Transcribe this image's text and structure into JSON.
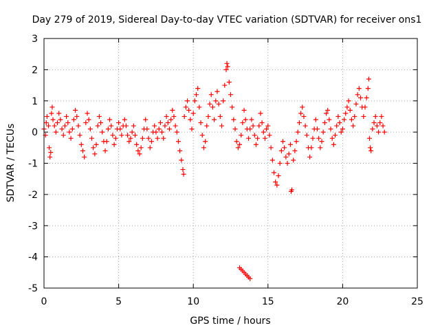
{
  "chart_data": {
    "type": "scatter",
    "title": "Day 279 of 2019, Sidereal Day-to-day VTEC variation (SDTVAR) for receiver ons1",
    "xlabel": "GPS time / hours",
    "ylabel": "SDTVAR / TECUs",
    "xlim": [
      0,
      25
    ],
    "ylim": [
      -5,
      3
    ],
    "xticks": [
      "0",
      "5",
      "10",
      "15",
      "20",
      "25"
    ],
    "yticks": [
      "-5",
      "-4",
      "-3",
      "-2",
      "-1",
      "0",
      "1",
      "2",
      "3"
    ],
    "grid": true,
    "marker": "plus",
    "marker_color": "#ff0000",
    "series": [
      {
        "name": "SDTVAR",
        "points": [
          [
            0.0,
            0.1
          ],
          [
            0.1,
            -0.1
          ],
          [
            0.15,
            0.3
          ],
          [
            0.2,
            0.5
          ],
          [
            0.3,
            0.2
          ],
          [
            0.35,
            -0.5
          ],
          [
            0.4,
            -0.8
          ],
          [
            0.45,
            -0.65
          ],
          [
            0.5,
            0.6
          ],
          [
            0.55,
            0.8
          ],
          [
            0.6,
            0.4
          ],
          [
            0.7,
            0.2
          ],
          [
            0.8,
            0.0
          ],
          [
            0.9,
            0.3
          ],
          [
            1.0,
            0.6
          ],
          [
            1.1,
            0.4
          ],
          [
            1.2,
            0.1
          ],
          [
            1.3,
            -0.1
          ],
          [
            1.4,
            0.2
          ],
          [
            1.5,
            0.5
          ],
          [
            1.6,
            0.3
          ],
          [
            1.7,
            0.0
          ],
          [
            1.8,
            -0.2
          ],
          [
            1.9,
            0.1
          ],
          [
            2.0,
            0.4
          ],
          [
            2.1,
            0.7
          ],
          [
            2.2,
            0.5
          ],
          [
            2.3,
            0.2
          ],
          [
            2.4,
            -0.1
          ],
          [
            2.5,
            -0.4
          ],
          [
            2.6,
            -0.6
          ],
          [
            2.7,
            -0.8
          ],
          [
            2.8,
            0.3
          ],
          [
            2.9,
            0.6
          ],
          [
            3.0,
            0.4
          ],
          [
            3.1,
            0.1
          ],
          [
            3.2,
            -0.2
          ],
          [
            3.3,
            -0.5
          ],
          [
            3.4,
            -0.7
          ],
          [
            3.5,
            -0.4
          ],
          [
            3.6,
            0.2
          ],
          [
            3.7,
            0.5
          ],
          [
            3.8,
            0.3
          ],
          [
            3.9,
            0.0
          ],
          [
            4.0,
            -0.3
          ],
          [
            4.1,
            -0.6
          ],
          [
            4.2,
            -0.3
          ],
          [
            4.3,
            0.1
          ],
          [
            4.4,
            0.4
          ],
          [
            4.5,
            0.2
          ],
          [
            4.6,
            -0.1
          ],
          [
            4.7,
            -0.4
          ],
          [
            4.8,
            -0.2
          ],
          [
            4.9,
            0.1
          ],
          [
            5.0,
            0.3
          ],
          [
            5.1,
            0.1
          ],
          [
            5.2,
            -0.1
          ],
          [
            5.3,
            0.2
          ],
          [
            5.4,
            0.4
          ],
          [
            5.5,
            0.2
          ],
          [
            5.6,
            -0.1
          ],
          [
            5.7,
            -0.3
          ],
          [
            5.8,
            -0.2
          ],
          [
            5.9,
            0.0
          ],
          [
            6.0,
            0.2
          ],
          [
            6.1,
            -0.1
          ],
          [
            6.2,
            -0.4
          ],
          [
            6.3,
            -0.6
          ],
          [
            6.4,
            -0.7
          ],
          [
            6.5,
            -0.5
          ],
          [
            6.6,
            -0.2
          ],
          [
            6.7,
            0.1
          ],
          [
            6.8,
            0.4
          ],
          [
            6.9,
            0.1
          ],
          [
            7.0,
            -0.2
          ],
          [
            7.1,
            -0.5
          ],
          [
            7.2,
            -0.3
          ],
          [
            7.3,
            0.0
          ],
          [
            7.4,
            0.2
          ],
          [
            7.5,
            0.0
          ],
          [
            7.6,
            -0.2
          ],
          [
            7.7,
            0.1
          ],
          [
            7.8,
            0.3
          ],
          [
            7.9,
            0.0
          ],
          [
            8.0,
            -0.2
          ],
          [
            8.1,
            0.2
          ],
          [
            8.2,
            0.5
          ],
          [
            8.3,
            0.3
          ],
          [
            8.4,
            0.1
          ],
          [
            8.5,
            0.4
          ],
          [
            8.6,
            0.7
          ],
          [
            8.7,
            0.5
          ],
          [
            8.8,
            0.2
          ],
          [
            8.9,
            0.0
          ],
          [
            9.0,
            -0.3
          ],
          [
            9.1,
            -0.6
          ],
          [
            9.2,
            -0.9
          ],
          [
            9.3,
            -1.2
          ],
          [
            9.35,
            -1.35
          ],
          [
            9.4,
            0.5
          ],
          [
            9.5,
            0.8
          ],
          [
            9.6,
            1.0
          ],
          [
            9.7,
            0.7
          ],
          [
            9.8,
            0.4
          ],
          [
            9.9,
            0.1
          ],
          [
            10.0,
            0.6
          ],
          [
            10.1,
            1.0
          ],
          [
            10.2,
            1.2
          ],
          [
            10.3,
            1.4
          ],
          [
            10.4,
            0.8
          ],
          [
            10.5,
            0.3
          ],
          [
            10.6,
            -0.1
          ],
          [
            10.7,
            -0.5
          ],
          [
            10.8,
            -0.3
          ],
          [
            10.9,
            0.2
          ],
          [
            11.0,
            0.5
          ],
          [
            11.1,
            0.9
          ],
          [
            11.2,
            1.2
          ],
          [
            11.3,
            0.8
          ],
          [
            11.4,
            0.4
          ],
          [
            11.5,
            1.0
          ],
          [
            11.6,
            1.3
          ],
          [
            11.7,
            0.9
          ],
          [
            11.8,
            0.5
          ],
          [
            11.9,
            0.2
          ],
          [
            12.0,
            1.0
          ],
          [
            12.1,
            1.5
          ],
          [
            12.2,
            2.0
          ],
          [
            12.25,
            2.2
          ],
          [
            12.3,
            2.1
          ],
          [
            12.4,
            1.6
          ],
          [
            12.5,
            1.2
          ],
          [
            12.6,
            0.8
          ],
          [
            12.7,
            0.4
          ],
          [
            12.8,
            0.1
          ],
          [
            12.9,
            -0.3
          ],
          [
            13.0,
            -0.5
          ],
          [
            13.1,
            -0.4
          ],
          [
            13.2,
            -0.1
          ],
          [
            13.3,
            0.3
          ],
          [
            13.4,
            0.7
          ],
          [
            13.5,
            0.4
          ],
          [
            13.6,
            0.1
          ],
          [
            13.7,
            -0.2
          ],
          [
            13.8,
            0.1
          ],
          [
            13.9,
            0.4
          ],
          [
            14.0,
            0.2
          ],
          [
            14.1,
            -0.1
          ],
          [
            14.2,
            -0.4
          ],
          [
            14.3,
            -0.2
          ],
          [
            14.4,
            0.2
          ],
          [
            14.5,
            0.6
          ],
          [
            14.6,
            0.3
          ],
          [
            14.7,
            0.0
          ],
          [
            14.8,
            -0.2
          ],
          [
            14.9,
            0.1
          ],
          [
            15.0,
            0.2
          ],
          [
            15.1,
            -0.1
          ],
          [
            15.2,
            -0.5
          ],
          [
            15.3,
            -0.9
          ],
          [
            15.4,
            -1.3
          ],
          [
            15.5,
            -1.6
          ],
          [
            15.6,
            -1.7
          ],
          [
            15.7,
            -1.4
          ],
          [
            15.8,
            -1.0
          ],
          [
            15.9,
            -0.6
          ],
          [
            16.0,
            -0.3
          ],
          [
            16.1,
            -0.5
          ],
          [
            16.2,
            -0.8
          ],
          [
            16.3,
            -1.0
          ],
          [
            16.4,
            -0.7
          ],
          [
            16.5,
            -0.4
          ],
          [
            16.55,
            -1.9
          ],
          [
            16.6,
            -1.85
          ],
          [
            16.7,
            -0.9
          ],
          [
            16.8,
            -0.6
          ],
          [
            16.9,
            -0.3
          ],
          [
            17.0,
            0.0
          ],
          [
            17.1,
            0.3
          ],
          [
            17.2,
            0.6
          ],
          [
            17.3,
            0.8
          ],
          [
            17.4,
            0.5
          ],
          [
            17.5,
            0.2
          ],
          [
            17.6,
            -0.1
          ],
          [
            17.7,
            -0.5
          ],
          [
            17.8,
            -0.8
          ],
          [
            17.9,
            -0.5
          ],
          [
            18.0,
            -0.2
          ],
          [
            18.1,
            0.1
          ],
          [
            18.2,
            0.4
          ],
          [
            18.3,
            0.1
          ],
          [
            18.4,
            -0.2
          ],
          [
            18.5,
            -0.5
          ],
          [
            18.6,
            -0.3
          ],
          [
            18.7,
            0.0
          ],
          [
            18.8,
            0.3
          ],
          [
            18.9,
            0.6
          ],
          [
            19.0,
            0.7
          ],
          [
            19.1,
            0.4
          ],
          [
            19.2,
            0.1
          ],
          [
            19.3,
            -0.2
          ],
          [
            19.4,
            -0.4
          ],
          [
            19.5,
            -0.1
          ],
          [
            19.6,
            0.2
          ],
          [
            19.7,
            0.5
          ],
          [
            19.8,
            0.3
          ],
          [
            19.9,
            0.0
          ],
          [
            20.0,
            0.1
          ],
          [
            20.1,
            0.4
          ],
          [
            20.2,
            0.6
          ],
          [
            20.3,
            0.8
          ],
          [
            20.4,
            1.0
          ],
          [
            20.5,
            0.7
          ],
          [
            20.6,
            0.4
          ],
          [
            20.7,
            0.2
          ],
          [
            20.8,
            0.5
          ],
          [
            20.9,
            0.9
          ],
          [
            21.0,
            1.2
          ],
          [
            21.1,
            1.4
          ],
          [
            21.2,
            1.1
          ],
          [
            21.3,
            0.8
          ],
          [
            21.4,
            0.5
          ],
          [
            21.5,
            0.8
          ],
          [
            21.6,
            1.1
          ],
          [
            21.7,
            1.4
          ],
          [
            21.75,
            1.7
          ],
          [
            21.8,
            -0.2
          ],
          [
            21.85,
            -0.5
          ],
          [
            21.9,
            -0.6
          ],
          [
            22.0,
            0.1
          ],
          [
            22.1,
            0.3
          ],
          [
            22.2,
            0.5
          ],
          [
            22.3,
            0.2
          ],
          [
            22.4,
            0.0
          ],
          [
            22.5,
            0.3
          ],
          [
            22.6,
            0.5
          ],
          [
            22.7,
            0.2
          ],
          [
            22.8,
            0.0
          ],
          [
            13.1,
            -4.35
          ],
          [
            13.2,
            -4.4
          ],
          [
            13.3,
            -4.45
          ],
          [
            13.4,
            -4.5
          ],
          [
            13.5,
            -4.55
          ],
          [
            13.6,
            -4.6
          ],
          [
            13.7,
            -4.65
          ],
          [
            13.8,
            -4.7
          ]
        ]
      }
    ]
  }
}
